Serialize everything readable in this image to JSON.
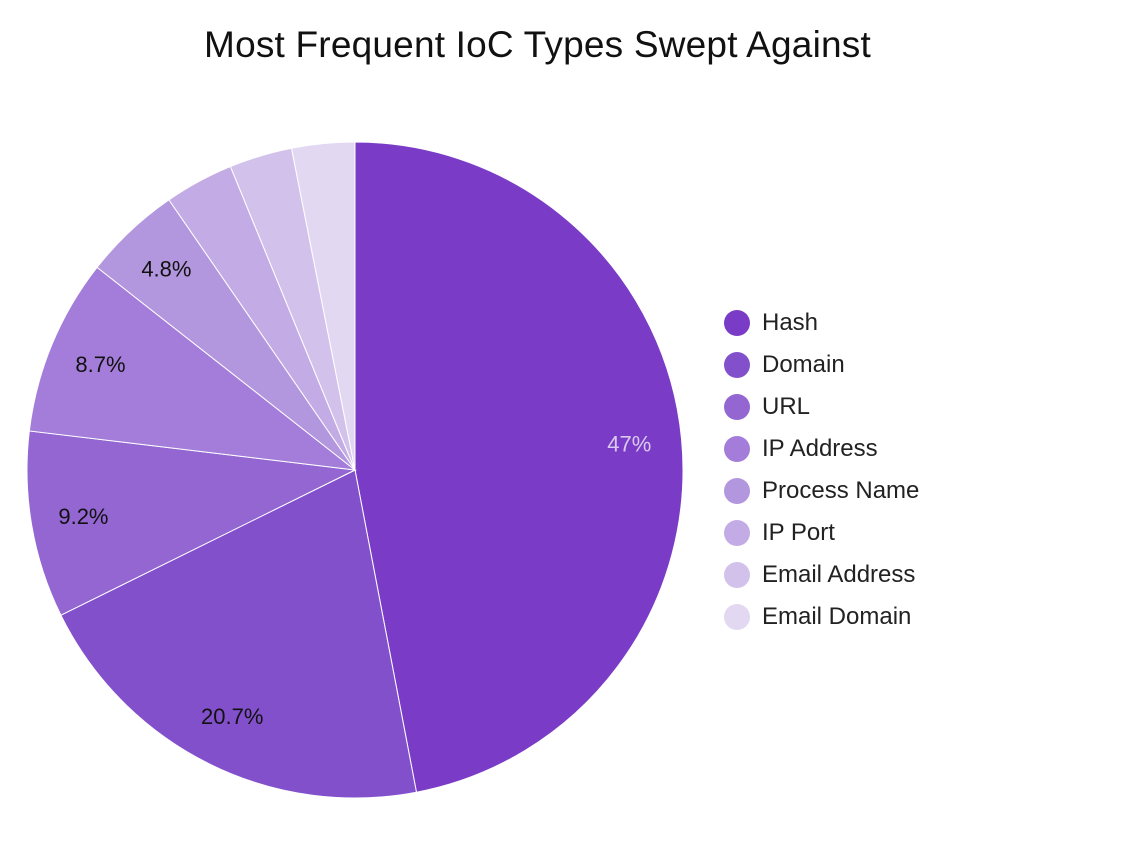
{
  "chart_data": {
    "type": "pie",
    "title": "Most Frequent IoC Types Swept Against",
    "legend_position": "right",
    "slices": [
      {
        "label": "Hash",
        "value": 47.0,
        "value_label": "47%",
        "color": "#7a3cc6",
        "label_color": "#d9c9ef"
      },
      {
        "label": "Domain",
        "value": 20.7,
        "value_label": "20.7%",
        "color": "#8350cc",
        "label_color": "#111111"
      },
      {
        "label": "URL",
        "value": 9.2,
        "value_label": "9.2%",
        "color": "#9366d2",
        "label_color": "#111111"
      },
      {
        "label": "IP Address",
        "value": 8.7,
        "value_label": "8.7%",
        "color": "#a37dd9",
        "label_color": "#111111"
      },
      {
        "label": "Process Name",
        "value": 4.8,
        "value_label": "4.8%",
        "color": "#b296de",
        "label_color": "#111111"
      },
      {
        "label": "IP Port",
        "value": 3.4,
        "value_label": "",
        "color": "#c3ace5",
        "label_color": "#111111"
      },
      {
        "label": "Email Address",
        "value": 3.1,
        "value_label": "",
        "color": "#d2c2eb",
        "label_color": "#111111"
      },
      {
        "label": "Email Domain",
        "value": 3.1,
        "value_label": "",
        "color": "#e2d8f2",
        "label_color": "#111111"
      }
    ]
  }
}
